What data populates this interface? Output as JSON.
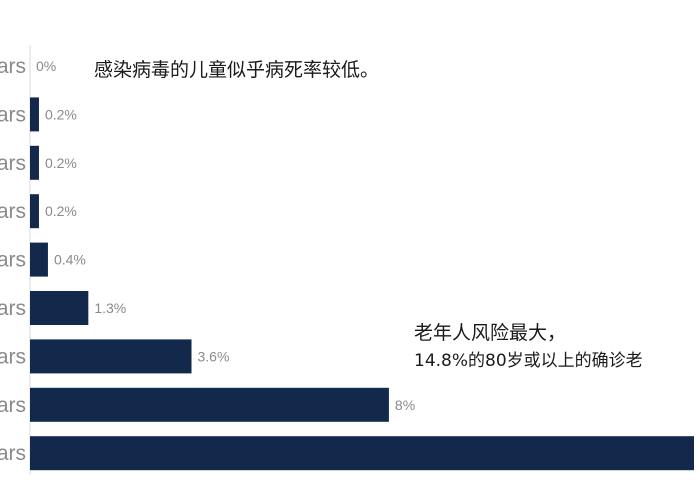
{
  "chart_data": {
    "type": "bar",
    "orientation": "horizontal",
    "categories": [
      "ars",
      "ars",
      "ars",
      "ars",
      "ars",
      "ars",
      "ars",
      "ars",
      "ars"
    ],
    "values": [
      0,
      0.2,
      0.2,
      0.2,
      0.4,
      1.3,
      3.6,
      8,
      14.8
    ],
    "value_labels": [
      "0%",
      "0.2%",
      "0.2%",
      "0.2%",
      "0.4%",
      "1.3%",
      "3.6%",
      "8%",
      ""
    ],
    "bar_color": "#13294b",
    "xlim": [
      0,
      14.8
    ],
    "grid": false,
    "legend": "none"
  },
  "annotations": {
    "top": "感染病毒的儿童似乎病死率较低。",
    "bottom_line1": "老年人风险最大，",
    "bottom_line2": "14.8%的80岁或以上的确诊老"
  }
}
